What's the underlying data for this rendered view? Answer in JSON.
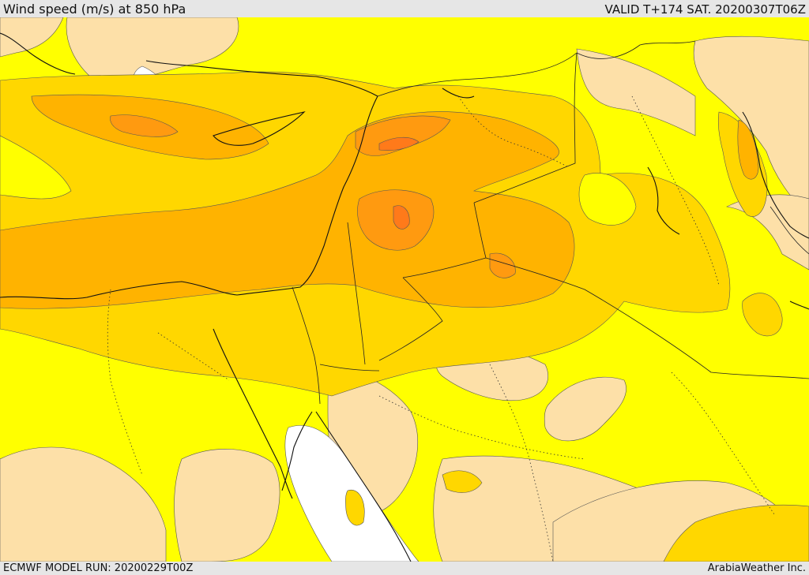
{
  "header": {
    "title": "Wind speed (m/s) at 850 hPa",
    "valid": "VALID T+174 SAT. 20200307T06Z"
  },
  "footer": {
    "model_run": "ECMWF MODEL RUN: 20200229T00Z",
    "credit": "ArabiaWeather Inc."
  },
  "map": {
    "variable": "wind speed",
    "level_hpa": 850,
    "colors": {
      "calm": "#ffffff",
      "light": "#fde0a8",
      "moderate": "#ffff00",
      "fresh": "#ffd700",
      "strong": "#ffb300",
      "very_strong": "#ff9a10",
      "extreme": "#ff7a1a",
      "coast": "#111111",
      "border": "#222222"
    }
  }
}
